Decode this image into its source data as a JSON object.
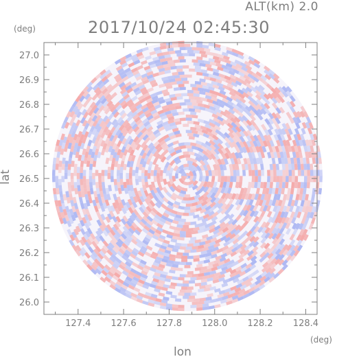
{
  "header": {
    "altitude": "ALT(km) 2.0",
    "timestamp": "2017/10/24 02:45:30"
  },
  "chart_data": {
    "type": "heatmap",
    "title": "2017/10/24 02:45:30",
    "subtitle": "ALT(km) 2.0",
    "xlabel": "lon",
    "ylabel": "lat",
    "x_unit": "(deg)",
    "y_unit": "(deg)",
    "xlim": [
      127.25,
      128.45
    ],
    "ylim": [
      25.95,
      27.05
    ],
    "x_ticks": [
      "127.4",
      "127.6",
      "127.8",
      "128.0",
      "128.2",
      "128.4"
    ],
    "y_ticks": [
      "26.0",
      "26.1",
      "26.2",
      "26.3",
      "26.4",
      "26.5",
      "26.6",
      "26.7",
      "26.8",
      "26.9",
      "27.0"
    ],
    "radar_center": {
      "lon": 127.88,
      "lat": 26.51
    },
    "colors": {
      "positive": "#f4a6a6",
      "negative": "#a9b4f2",
      "neutral": "#ffffff",
      "axis": "#7d7d7d"
    }
  }
}
